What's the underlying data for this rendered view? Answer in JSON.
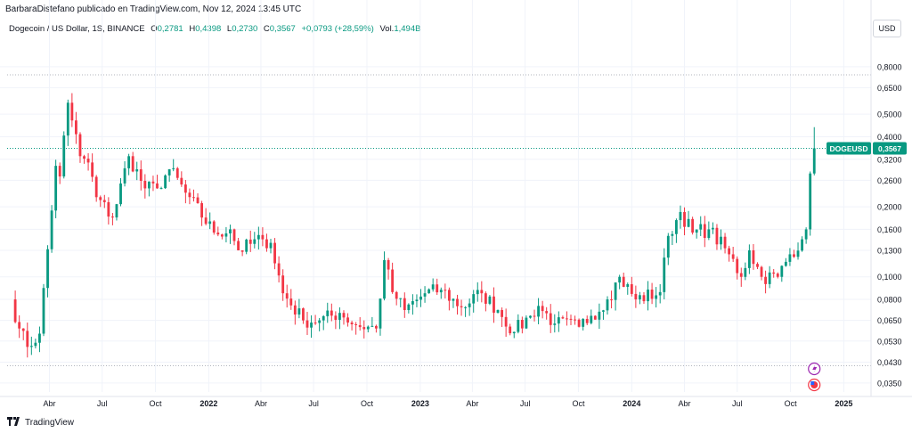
{
  "header": {
    "attribution": "BarbaraDistefano publicado en TradingView.com, Nov 12, 2024 13:45 UTC"
  },
  "legend": {
    "symbol": "Dogecoin / US Dollar, 1S, BINANCE",
    "o_label": "O",
    "o_value": "0,2781",
    "h_label": "H",
    "h_value": "0,4398",
    "l_label": "L",
    "l_value": "0,2730",
    "c_label": "C",
    "c_value": "0,3567",
    "change": "+0,0793 (+28,59%)",
    "vol_label": "Vol.",
    "vol_value": "1,494B"
  },
  "currency_button": "USD",
  "footer": {
    "logo_text": "TradingView"
  },
  "colors": {
    "up": "#089981",
    "down": "#f23645",
    "grid": "#f0f3fa",
    "axis_text": "#131722",
    "price_line": "#089981"
  },
  "chart_data": {
    "type": "candlestick",
    "symbol": "DOGEUSD",
    "timeframe": "1S",
    "scale": "log",
    "y_axis_labels": [
      0.035,
      0.043,
      0.053,
      0.065,
      0.08,
      0.1,
      0.13,
      0.16,
      0.2,
      0.26,
      0.32,
      0.4,
      0.5,
      0.65,
      0.8
    ],
    "y_tick_text": [
      "0,0350",
      "0,0430",
      "0,0530",
      "0,0650",
      "0,0800",
      "0,1000",
      "0,1300",
      "0,1600",
      "0,2000",
      "0,2600",
      "0,3200",
      "0,4000",
      "0,5000",
      "0,6500",
      "0,8000"
    ],
    "ylim": [
      0.032,
      1.05
    ],
    "x_tick_labels": [
      {
        "label": "Abr",
        "date": "2021-04-01",
        "bold": false
      },
      {
        "label": "Jul",
        "date": "2021-07-01",
        "bold": false
      },
      {
        "label": "Oct",
        "date": "2021-10-01",
        "bold": false
      },
      {
        "label": "2022",
        "date": "2022-01-01",
        "bold": true
      },
      {
        "label": "Abr",
        "date": "2022-04-01",
        "bold": false
      },
      {
        "label": "Jul",
        "date": "2022-07-01",
        "bold": false
      },
      {
        "label": "Oct",
        "date": "2022-10-01",
        "bold": false
      },
      {
        "label": "2023",
        "date": "2023-01-01",
        "bold": true
      },
      {
        "label": "Abr",
        "date": "2023-04-01",
        "bold": false
      },
      {
        "label": "Jul",
        "date": "2023-07-01",
        "bold": false
      },
      {
        "label": "Oct",
        "date": "2023-10-01",
        "bold": false
      },
      {
        "label": "2024",
        "date": "2024-01-01",
        "bold": true
      },
      {
        "label": "Abr",
        "date": "2024-04-01",
        "bold": false
      },
      {
        "label": "Jul",
        "date": "2024-07-01",
        "bold": false
      },
      {
        "label": "Oct",
        "date": "2024-10-01",
        "bold": false
      },
      {
        "label": "2025",
        "date": "2025-01-01",
        "bold": true
      }
    ],
    "xlim": [
      "2021-01-18",
      "2025-02-17"
    ],
    "last_price_label": "DOGEUSD",
    "last_price_text": "0,3567",
    "last_price": 0.3567,
    "high_reference_line": 0.7376,
    "low_reference_line": 0.0415,
    "anchors": [
      {
        "date": "2021-01-25",
        "price": 0.08
      },
      {
        "date": "2021-02-08",
        "price": 0.06
      },
      {
        "date": "2021-02-22",
        "price": 0.05
      },
      {
        "date": "2021-03-15",
        "price": 0.057
      },
      {
        "date": "2021-04-12",
        "price": 0.3
      },
      {
        "date": "2021-04-19",
        "price": 0.27
      },
      {
        "date": "2021-05-03",
        "price": 0.56
      },
      {
        "date": "2021-05-10",
        "price": 0.47
      },
      {
        "date": "2021-05-24",
        "price": 0.33
      },
      {
        "date": "2021-06-07",
        "price": 0.31
      },
      {
        "date": "2021-06-21",
        "price": 0.22
      },
      {
        "date": "2021-07-19",
        "price": 0.18
      },
      {
        "date": "2021-08-16",
        "price": 0.33
      },
      {
        "date": "2021-09-13",
        "price": 0.24
      },
      {
        "date": "2021-10-04",
        "price": 0.24
      },
      {
        "date": "2021-10-25",
        "price": 0.29
      },
      {
        "date": "2021-11-22",
        "price": 0.23
      },
      {
        "date": "2022-01-10",
        "price": 0.155
      },
      {
        "date": "2022-02-07",
        "price": 0.16
      },
      {
        "date": "2022-02-21",
        "price": 0.13
      },
      {
        "date": "2022-04-04",
        "price": 0.145
      },
      {
        "date": "2022-04-18",
        "price": 0.14
      },
      {
        "date": "2022-05-09",
        "price": 0.085
      },
      {
        "date": "2022-06-13",
        "price": 0.065
      },
      {
        "date": "2022-07-11",
        "price": 0.065
      },
      {
        "date": "2022-08-15",
        "price": 0.07
      },
      {
        "date": "2022-09-12",
        "price": 0.062
      },
      {
        "date": "2022-10-17",
        "price": 0.06
      },
      {
        "date": "2022-10-31",
        "price": 0.118
      },
      {
        "date": "2022-11-14",
        "price": 0.086
      },
      {
        "date": "2022-12-05",
        "price": 0.072
      },
      {
        "date": "2023-01-09",
        "price": 0.085
      },
      {
        "date": "2023-02-06",
        "price": 0.088
      },
      {
        "date": "2023-03-13",
        "price": 0.074
      },
      {
        "date": "2023-04-17",
        "price": 0.085
      },
      {
        "date": "2023-05-15",
        "price": 0.072
      },
      {
        "date": "2023-06-12",
        "price": 0.058
      },
      {
        "date": "2023-07-10",
        "price": 0.068
      },
      {
        "date": "2023-07-24",
        "price": 0.075
      },
      {
        "date": "2023-08-21",
        "price": 0.063
      },
      {
        "date": "2023-10-02",
        "price": 0.061
      },
      {
        "date": "2023-10-23",
        "price": 0.068
      },
      {
        "date": "2023-11-20",
        "price": 0.08
      },
      {
        "date": "2023-12-11",
        "price": 0.1
      },
      {
        "date": "2024-01-08",
        "price": 0.08
      },
      {
        "date": "2024-02-19",
        "price": 0.086
      },
      {
        "date": "2024-03-04",
        "price": 0.15
      },
      {
        "date": "2024-03-25",
        "price": 0.19
      },
      {
        "date": "2024-04-15",
        "price": 0.155
      },
      {
        "date": "2024-05-13",
        "price": 0.16
      },
      {
        "date": "2024-06-17",
        "price": 0.125
      },
      {
        "date": "2024-07-08",
        "price": 0.1
      },
      {
        "date": "2024-07-22",
        "price": 0.13
      },
      {
        "date": "2024-08-12",
        "price": 0.1
      },
      {
        "date": "2024-09-09",
        "price": 0.1
      },
      {
        "date": "2024-09-30",
        "price": 0.125
      },
      {
        "date": "2024-10-21",
        "price": 0.145
      },
      {
        "date": "2024-10-28",
        "price": 0.16
      },
      {
        "date": "2024-11-04",
        "price": 0.2781
      },
      {
        "date": "2024-11-11",
        "price": 0.3567
      }
    ]
  }
}
